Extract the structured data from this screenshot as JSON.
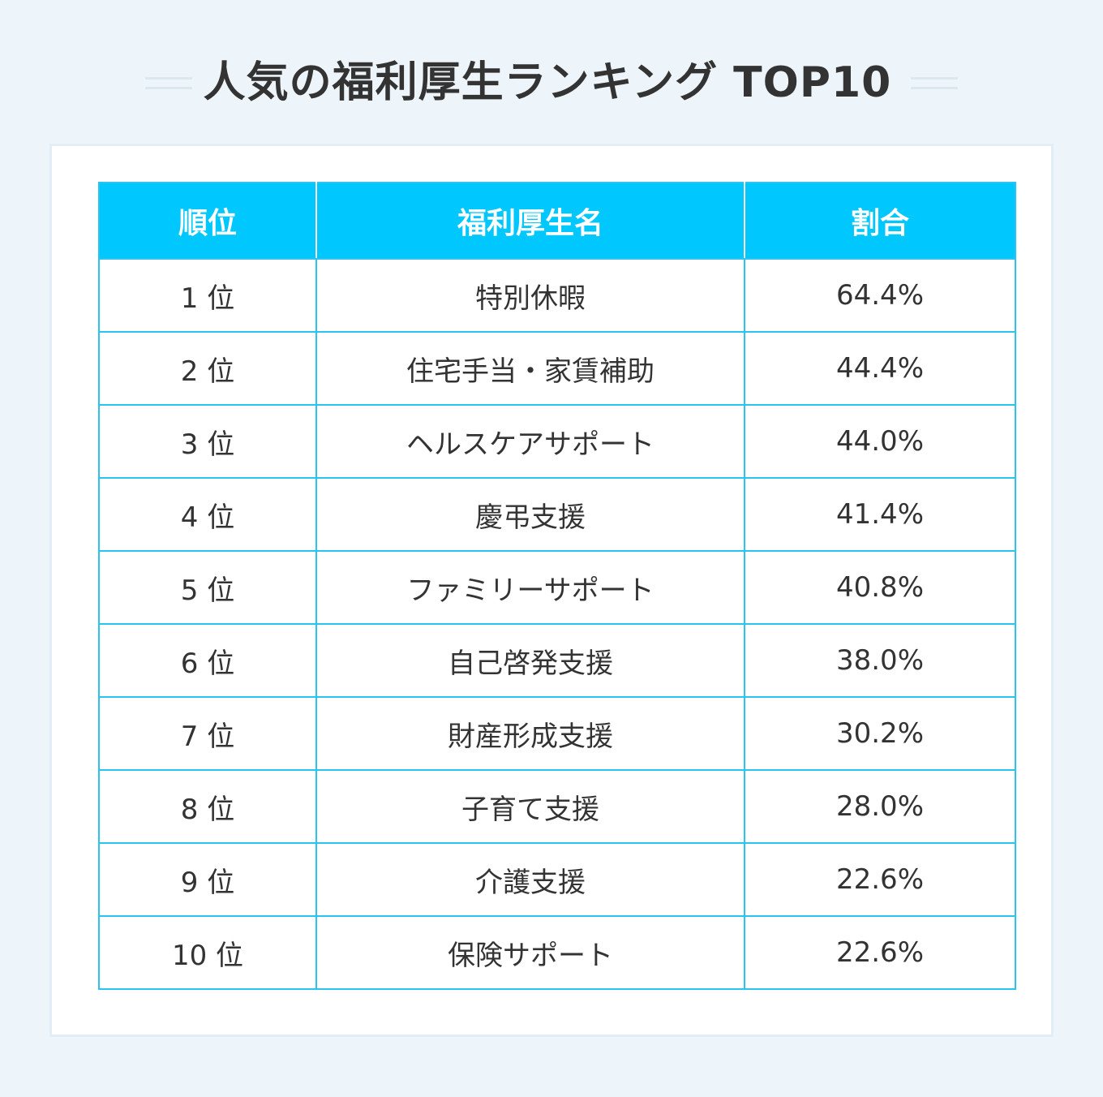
{
  "title": "人気の福利厚生ランキング TOP10",
  "colors": {
    "background": "#edf5fa",
    "card": "#ffffff",
    "header": "#00c8ff",
    "border": "#29c4ef",
    "text": "#333333"
  },
  "chart_data": {
    "type": "table",
    "title": "人気の福利厚生ランキング TOP10",
    "columns": [
      "順位",
      "福利厚生名",
      "割合"
    ],
    "rows": [
      {
        "rank": "1 位",
        "name": "特別休暇",
        "rate": "64.4%"
      },
      {
        "rank": "2 位",
        "name": "住宅手当・家賃補助",
        "rate": "44.4%"
      },
      {
        "rank": "3 位",
        "name": "ヘルスケアサポート",
        "rate": "44.0%"
      },
      {
        "rank": "4 位",
        "name": "慶弔支援",
        "rate": "41.4%"
      },
      {
        "rank": "5 位",
        "name": "ファミリーサポート",
        "rate": "40.8%"
      },
      {
        "rank": "6 位",
        "name": "自己啓発支援",
        "rate": "38.0%"
      },
      {
        "rank": "7 位",
        "name": "財産形成支援",
        "rate": "30.2%"
      },
      {
        "rank": "8 位",
        "name": "子育て支援",
        "rate": "28.0%"
      },
      {
        "rank": "9 位",
        "name": "介護支援",
        "rate": "22.6%"
      },
      {
        "rank": "10 位",
        "name": "保険サポート",
        "rate": "22.6%"
      }
    ]
  }
}
